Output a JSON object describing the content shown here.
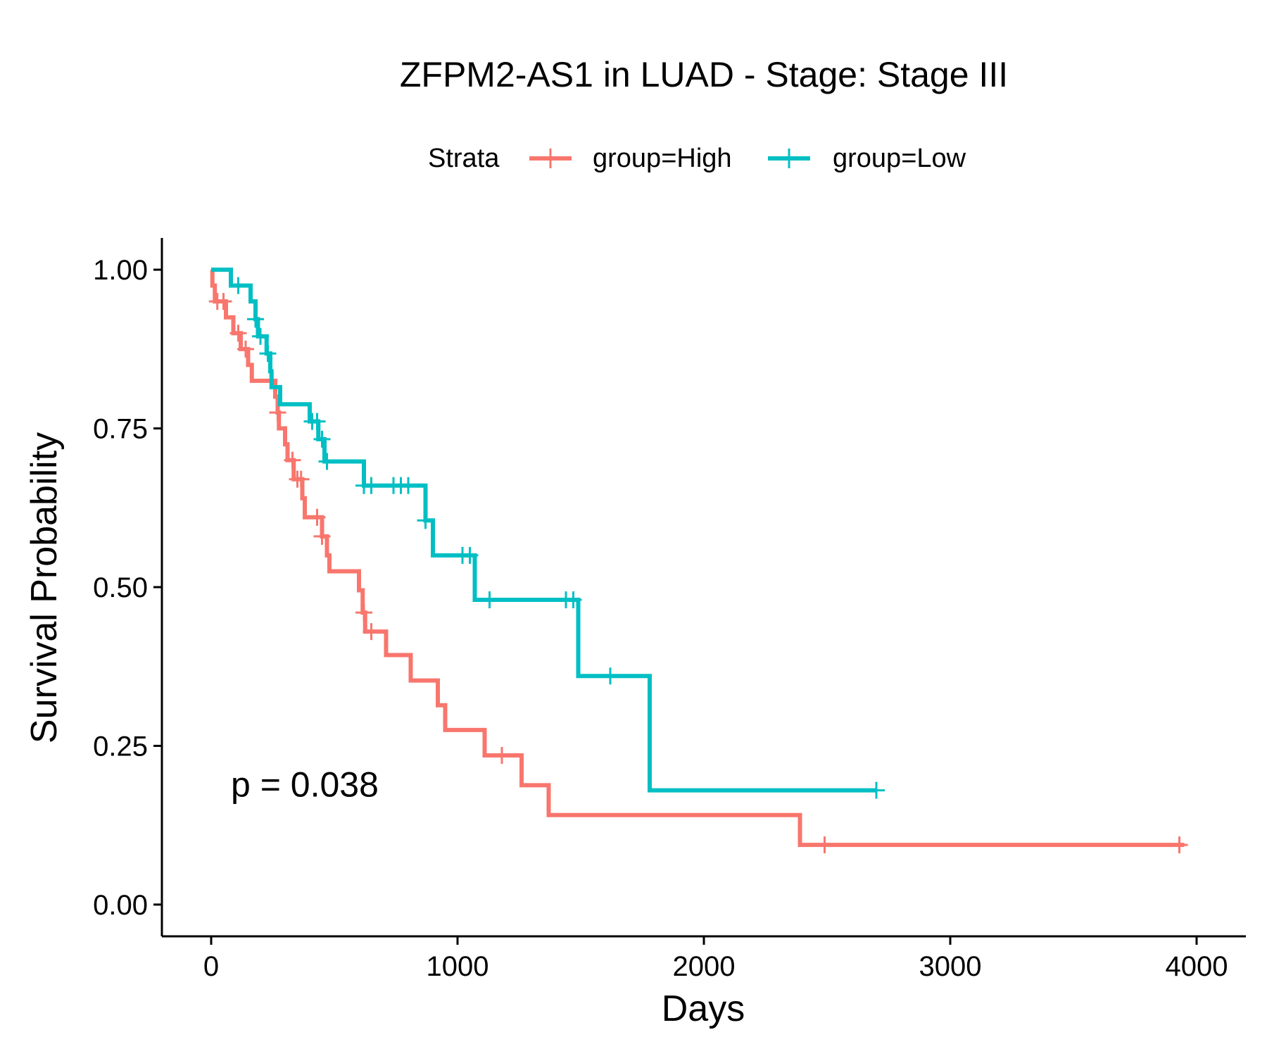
{
  "chart_data": {
    "type": "line",
    "subtype": "kaplan-meier step",
    "title": "ZFPM2-AS1 in LUAD - Stage: Stage III",
    "xlabel": "Days",
    "ylabel": "Survival Probability",
    "xlim": [
      -200,
      4200
    ],
    "ylim": [
      -0.05,
      1.05
    ],
    "x_ticks": [
      0,
      1000,
      2000,
      3000,
      4000
    ],
    "x_tick_labels": [
      "0",
      "1000",
      "2000",
      "3000",
      "4000"
    ],
    "y_ticks": [
      0,
      0.25,
      0.5,
      0.75,
      1.0
    ],
    "y_tick_labels": [
      "0.00",
      "0.25",
      "0.50",
      "0.75",
      "1.00"
    ],
    "grid": false,
    "legend": {
      "title": "Strata",
      "position": "top"
    },
    "annotation": {
      "text": "p = 0.038",
      "x": 80,
      "y": 0.19
    },
    "series": [
      {
        "name": "group=High",
        "color": "#F8766D",
        "steps": [
          [
            0,
            1.0
          ],
          [
            5,
            0.975
          ],
          [
            15,
            0.95
          ],
          [
            60,
            0.925
          ],
          [
            90,
            0.9
          ],
          [
            120,
            0.875
          ],
          [
            150,
            0.85
          ],
          [
            165,
            0.825
          ],
          [
            260,
            0.8
          ],
          [
            270,
            0.775
          ],
          [
            275,
            0.75
          ],
          [
            300,
            0.725
          ],
          [
            310,
            0.7
          ],
          [
            335,
            0.67
          ],
          [
            370,
            0.64
          ],
          [
            380,
            0.61
          ],
          [
            450,
            0.58
          ],
          [
            470,
            0.55
          ],
          [
            480,
            0.525
          ],
          [
            600,
            0.495
          ],
          [
            615,
            0.46
          ],
          [
            625,
            0.43
          ],
          [
            710,
            0.393
          ],
          [
            810,
            0.353
          ],
          [
            920,
            0.314
          ],
          [
            950,
            0.275
          ],
          [
            1110,
            0.235
          ],
          [
            1260,
            0.188
          ],
          [
            1370,
            0.141
          ],
          [
            2390,
            0.094
          ]
        ],
        "end_x": 3950,
        "censor_times": [
          25,
          50,
          110,
          140,
          270,
          330,
          350,
          365,
          430,
          450,
          620,
          650,
          1180,
          2490,
          3930
        ]
      },
      {
        "name": "group=Low",
        "color": "#00BFC4",
        "steps": [
          [
            0,
            1.0
          ],
          [
            80,
            0.975
          ],
          [
            160,
            0.95
          ],
          [
            180,
            0.922
          ],
          [
            190,
            0.895
          ],
          [
            225,
            0.868
          ],
          [
            240,
            0.84
          ],
          [
            245,
            0.815
          ],
          [
            280,
            0.788
          ],
          [
            400,
            0.761
          ],
          [
            435,
            0.733
          ],
          [
            460,
            0.698
          ],
          [
            620,
            0.66
          ],
          [
            870,
            0.605
          ],
          [
            900,
            0.55
          ],
          [
            1070,
            0.48
          ],
          [
            1490,
            0.36
          ],
          [
            1780,
            0.18
          ]
        ],
        "end_x": 2700,
        "censor_times": [
          110,
          180,
          200,
          230,
          410,
          430,
          450,
          470,
          620,
          650,
          740,
          770,
          800,
          870,
          1020,
          1050,
          1130,
          1440,
          1470,
          1620,
          2700
        ]
      }
    ]
  }
}
